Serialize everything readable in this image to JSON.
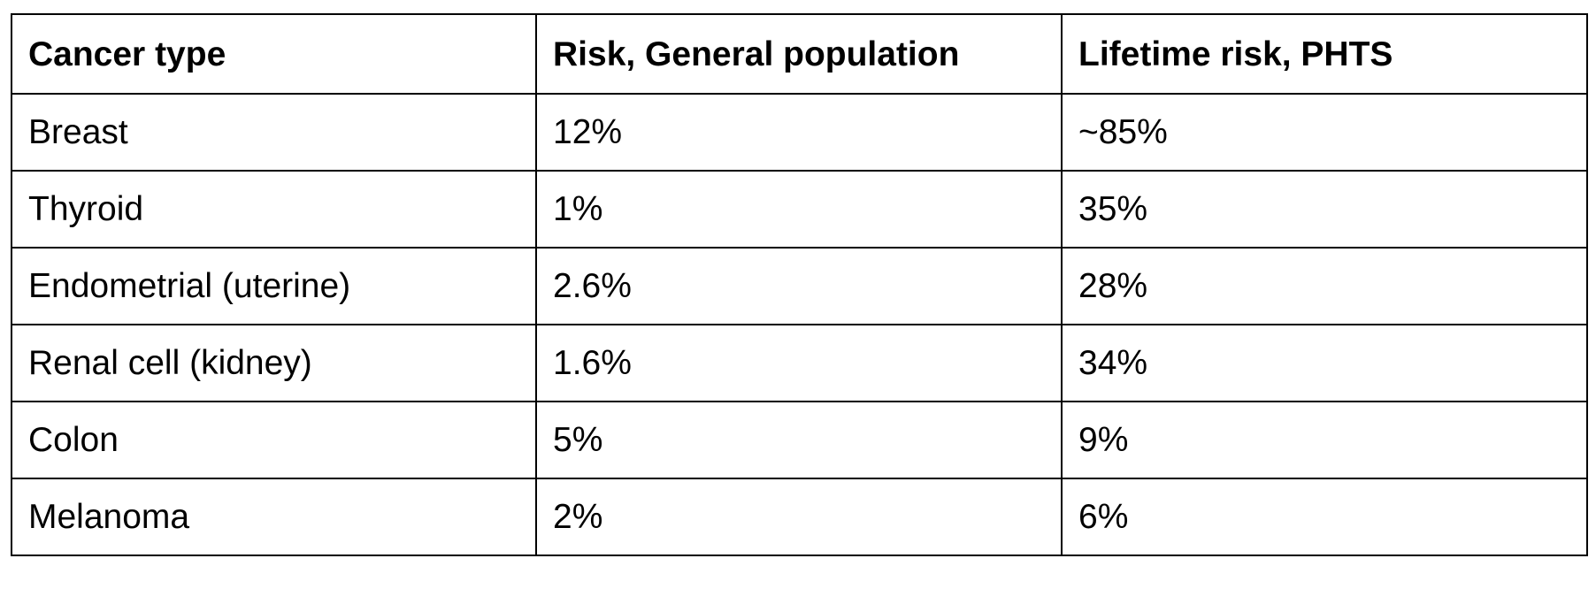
{
  "table": {
    "headers": [
      "Cancer type",
      "Risk, General population",
      "Lifetime risk, PHTS"
    ],
    "rows": [
      [
        "Breast",
        "12%",
        "~85%"
      ],
      [
        "Thyroid",
        "1%",
        "35%"
      ],
      [
        "Endometrial (uterine)",
        "2.6%",
        "28%"
      ],
      [
        "Renal cell (kidney)",
        "1.6%",
        "34%"
      ],
      [
        "Colon",
        "5%",
        "9%"
      ],
      [
        "Melanoma",
        "2%",
        "6%"
      ]
    ]
  }
}
